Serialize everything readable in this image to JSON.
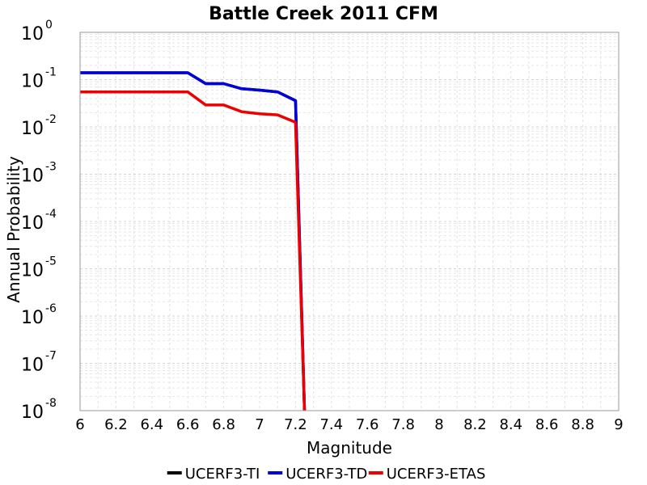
{
  "chart_data": {
    "type": "line",
    "title": "Battle Creek 2011 CFM",
    "xlabel": "Magnitude",
    "ylabel": "Annual Probability",
    "xlim": [
      6,
      9
    ],
    "ylim": [
      1e-08,
      1
    ],
    "yscale": "log",
    "grid": true,
    "legend_position": "bottom",
    "x_ticks": [
      "6",
      "6.2",
      "6.4",
      "6.6",
      "6.8",
      "7",
      "7.2",
      "7.4",
      "7.6",
      "7.8",
      "8",
      "8.2",
      "8.4",
      "8.6",
      "8.8",
      "9"
    ],
    "y_ticks": [
      {
        "base": "10",
        "exp": "0"
      },
      {
        "base": "10",
        "exp": "-1"
      },
      {
        "base": "10",
        "exp": "-2"
      },
      {
        "base": "10",
        "exp": "-3"
      },
      {
        "base": "10",
        "exp": "-4"
      },
      {
        "base": "10",
        "exp": "-5"
      },
      {
        "base": "10",
        "exp": "-6"
      },
      {
        "base": "10",
        "exp": "-7"
      },
      {
        "base": "10",
        "exp": "-8"
      }
    ],
    "series": [
      {
        "name": "UCERF3-TI",
        "color": "#000000",
        "x": [
          6.0,
          6.1,
          6.2,
          6.3,
          6.4,
          6.5,
          6.6,
          6.7,
          6.8,
          6.9,
          7.0,
          7.1,
          7.2,
          7.25
        ],
        "y": [
          0.14,
          0.14,
          0.14,
          0.14,
          0.14,
          0.14,
          0.14,
          0.082,
          0.082,
          0.064,
          0.06,
          0.055,
          0.036,
          1e-08
        ]
      },
      {
        "name": "UCERF3-TD",
        "color": "#0000dd",
        "x": [
          6.0,
          6.1,
          6.2,
          6.3,
          6.4,
          6.5,
          6.6,
          6.7,
          6.8,
          6.9,
          7.0,
          7.1,
          7.2,
          7.25
        ],
        "y": [
          0.14,
          0.14,
          0.14,
          0.14,
          0.14,
          0.14,
          0.14,
          0.082,
          0.082,
          0.064,
          0.06,
          0.055,
          0.036,
          1e-08
        ]
      },
      {
        "name": "UCERF3-ETAS",
        "color": "#ee0000",
        "x": [
          6.0,
          6.1,
          6.2,
          6.3,
          6.4,
          6.5,
          6.6,
          6.7,
          6.8,
          6.9,
          7.0,
          7.1,
          7.2,
          7.25
        ],
        "y": [
          0.055,
          0.055,
          0.055,
          0.055,
          0.055,
          0.055,
          0.055,
          0.029,
          0.029,
          0.021,
          0.019,
          0.018,
          0.0125,
          1e-08
        ]
      }
    ]
  }
}
